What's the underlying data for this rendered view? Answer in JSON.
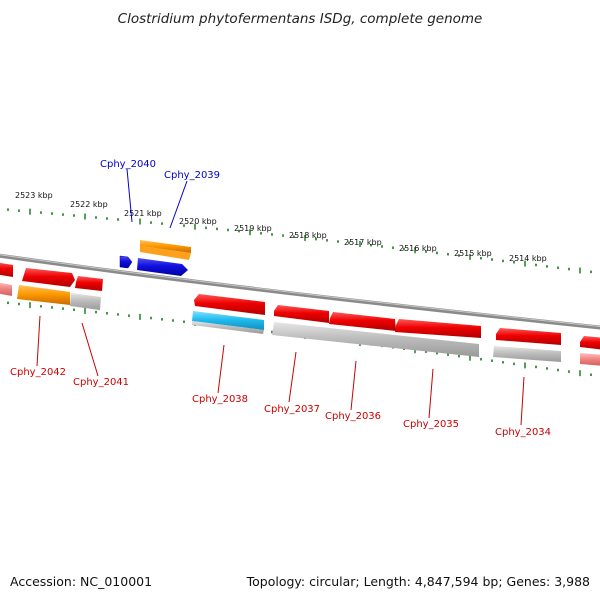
{
  "title": "Clostridium phytofermentans ISDg, complete genome",
  "footer": {
    "accession": "Accession: NC_010001",
    "topology": "Topology: circular; Length: 4,847,594 bp; Genes: 3,988"
  },
  "ruler_labels": [
    "2523 kbp",
    "2522 kbp",
    "2521 kbp",
    "2520 kbp",
    "2519 kbp",
    "2518 kbp",
    "2517 kbp",
    "2516 kbp",
    "2515 kbp",
    "2514 kbp"
  ],
  "gene_labels": {
    "cphy_2040": "Cphy_2040",
    "cphy_2039": "Cphy_2039",
    "cphy_2042": "Cphy_2042",
    "cphy_2041": "Cphy_2041",
    "cphy_2038": "Cphy_2038",
    "cphy_2037": "Cphy_2037",
    "cphy_2036": "Cphy_2036",
    "cphy_2035": "Cphy_2035",
    "cphy_2034": "Cphy_2034"
  },
  "colors": {
    "backbone": "#888888",
    "tick": "#2e8b2e",
    "gene_red": "#ee0000",
    "gene_orange": "#ff9900",
    "gene_blue": "#1111dd",
    "gene_cyan": "#22bbee",
    "gene_gray": "#bbbbbb",
    "gene_pink": "#f08080",
    "label_blue": "#0000cc",
    "label_red": "#cc0000"
  }
}
